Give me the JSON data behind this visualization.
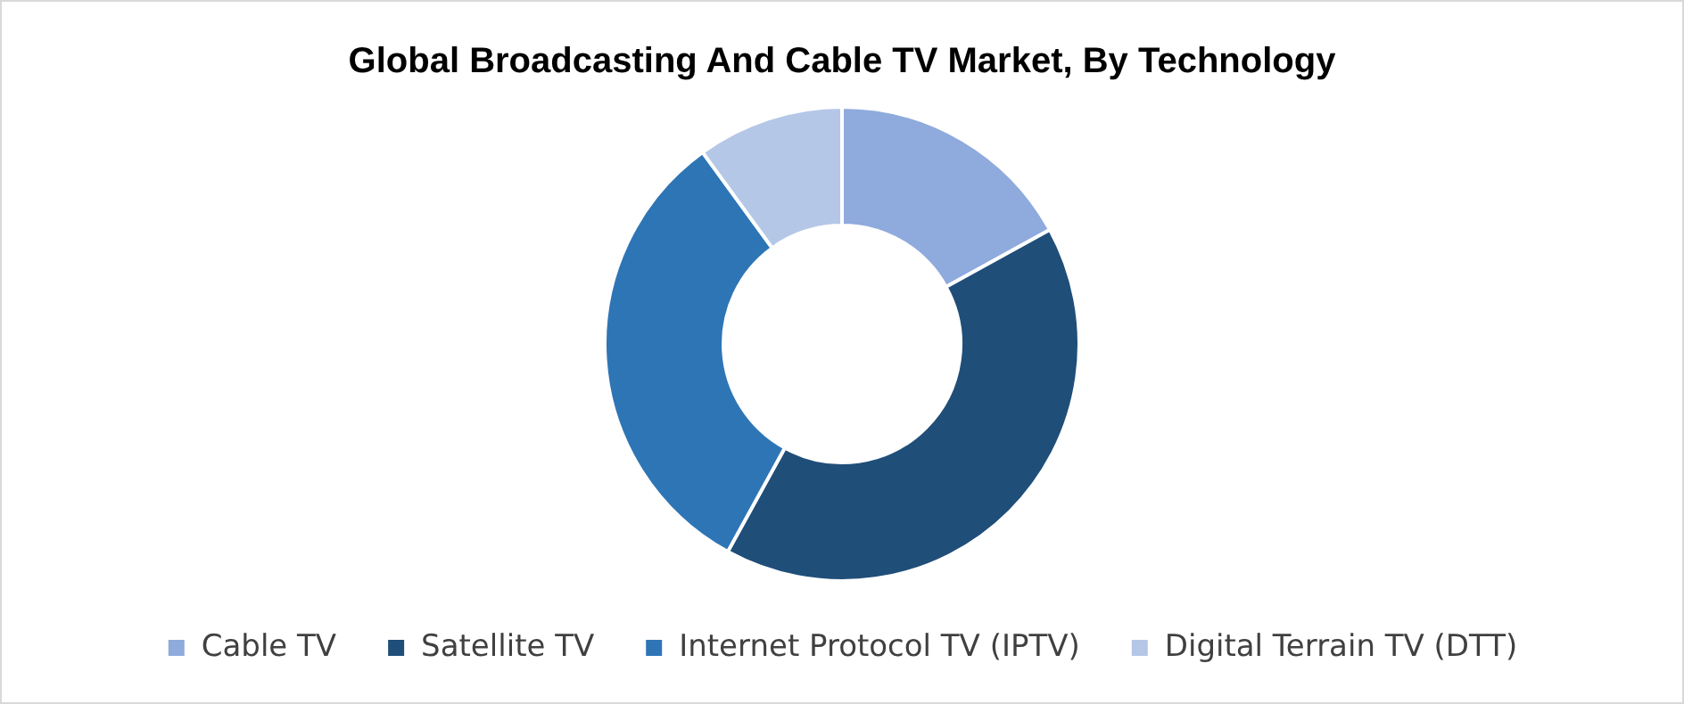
{
  "chart_data": {
    "type": "donut",
    "title": "Global Broadcasting And Cable TV Market, By Technology",
    "categories": [
      "Cable TV",
      "Satellite TV",
      "Internet Protocol TV (IPTV)",
      "Digital Terrain TV (DTT)"
    ],
    "values": [
      17,
      41,
      32,
      10
    ],
    "colors": [
      "#8faadc",
      "#1f4e79",
      "#2e75b6",
      "#b4c7e7"
    ],
    "legend": "bottom"
  }
}
